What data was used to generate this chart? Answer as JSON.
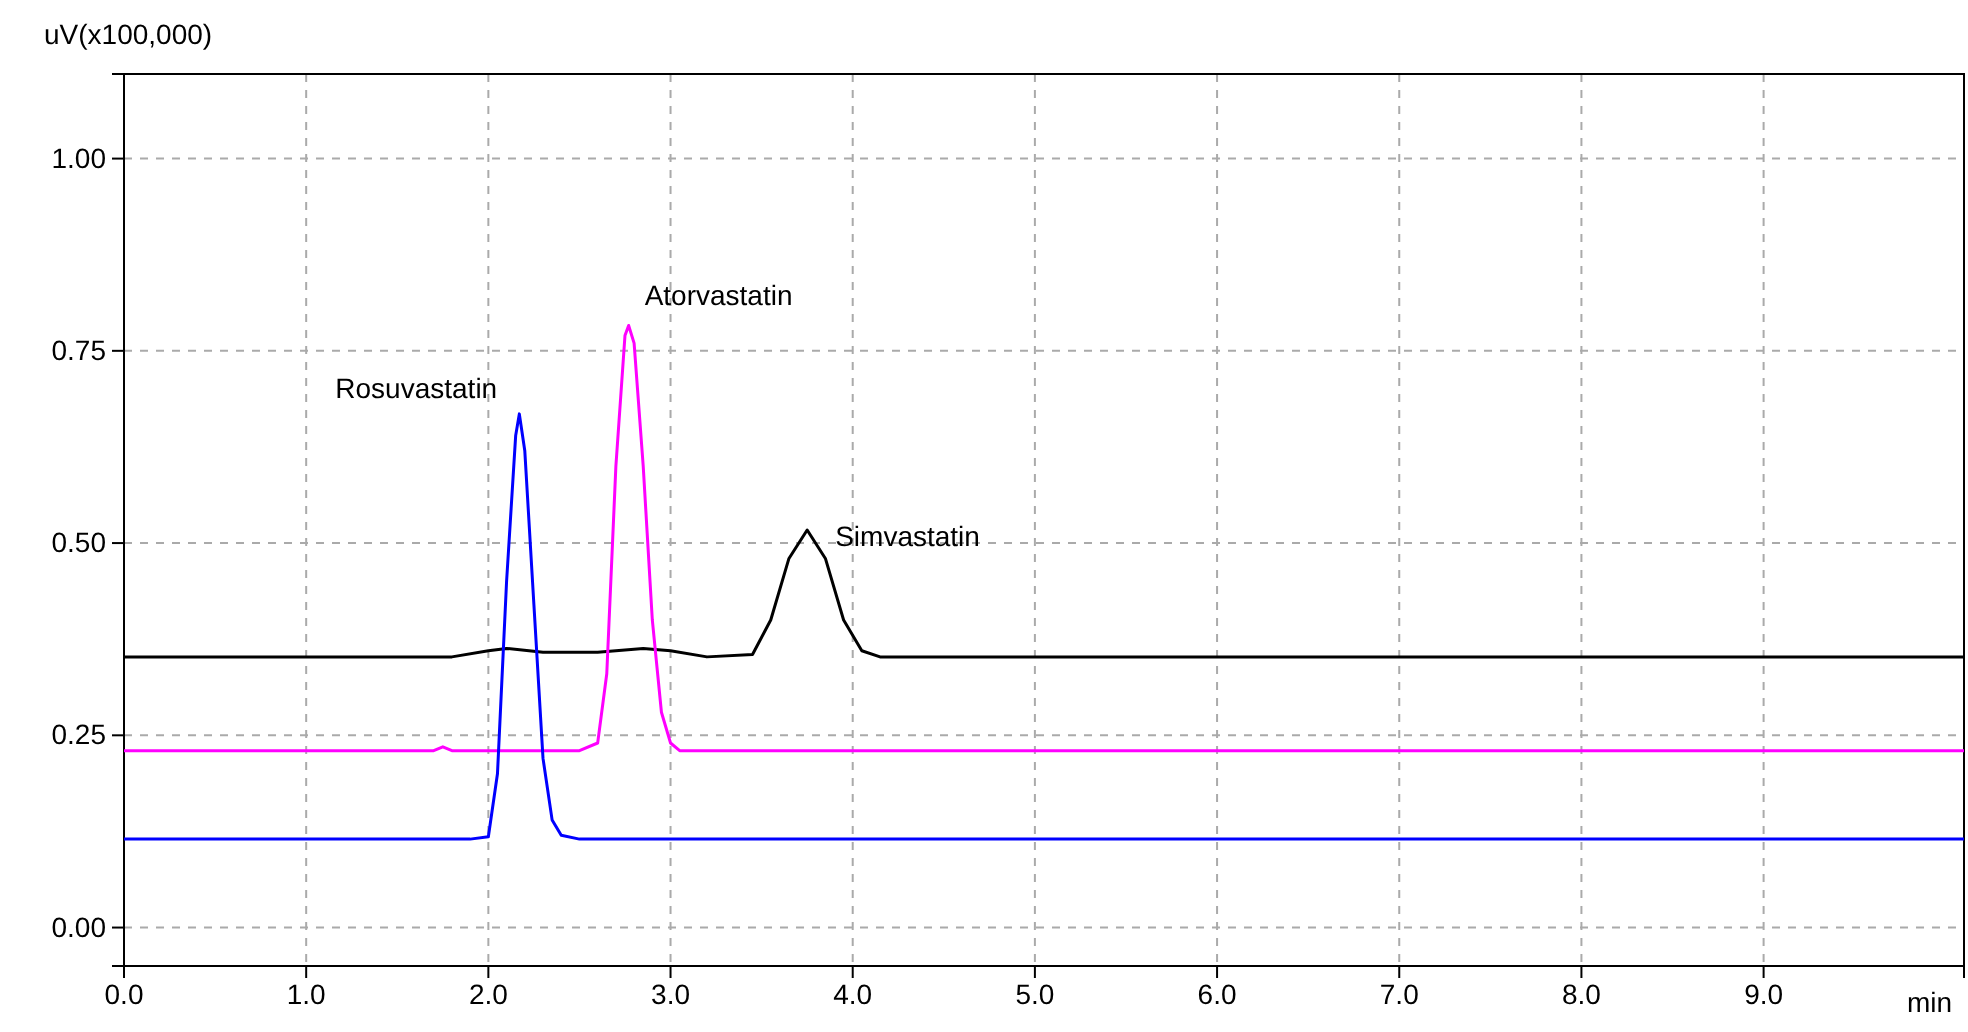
{
  "chart_data": {
    "type": "line",
    "ylabel": "uV(x100,000)",
    "xlabel": "min",
    "xlim": [
      0,
      10.1
    ],
    "ylim": [
      -0.05,
      1.11
    ],
    "xticks": [
      {
        "value": 0,
        "label": "0.0"
      },
      {
        "value": 1,
        "label": "1.0"
      },
      {
        "value": 2,
        "label": "2.0"
      },
      {
        "value": 3,
        "label": "3.0"
      },
      {
        "value": 4,
        "label": "4.0"
      },
      {
        "value": 5,
        "label": "5.0"
      },
      {
        "value": 6,
        "label": "6.0"
      },
      {
        "value": 7,
        "label": "7.0"
      },
      {
        "value": 8,
        "label": "8.0"
      },
      {
        "value": 9,
        "label": "9.0"
      }
    ],
    "yticks": [
      {
        "value": 0,
        "label": "0.00"
      },
      {
        "value": 0.25,
        "label": "0.25"
      },
      {
        "value": 0.5,
        "label": "0.50"
      },
      {
        "value": 0.75,
        "label": "0.75"
      },
      {
        "value": 1,
        "label": "1.00"
      }
    ],
    "grid": true,
    "legend": false,
    "line_style": "solid",
    "marker": "none",
    "series": [
      {
        "name": "Simvastatin",
        "color": "#000000",
        "x": [
          0,
          1.8,
          2.0,
          2.1,
          2.3,
          2.6,
          2.85,
          3.0,
          3.2,
          3.45,
          3.55,
          3.65,
          3.75,
          3.85,
          3.95,
          4.05,
          4.15,
          10.1
        ],
        "values": [
          0.352,
          0.352,
          0.36,
          0.363,
          0.358,
          0.358,
          0.363,
          0.36,
          0.352,
          0.355,
          0.4,
          0.48,
          0.517,
          0.48,
          0.4,
          0.36,
          0.352,
          0.352
        ]
      },
      {
        "name": "Atorvastatin",
        "color": "#ff00ff",
        "x": [
          0,
          1.7,
          1.75,
          1.8,
          2.5,
          2.6,
          2.65,
          2.7,
          2.75,
          2.77,
          2.8,
          2.85,
          2.9,
          2.95,
          3.0,
          3.05,
          10.1
        ],
        "values": [
          0.23,
          0.23,
          0.235,
          0.23,
          0.23,
          0.24,
          0.33,
          0.6,
          0.77,
          0.783,
          0.76,
          0.6,
          0.4,
          0.28,
          0.24,
          0.23,
          0.23
        ]
      },
      {
        "name": "Rosuvastatin",
        "color": "#0000ff",
        "x": [
          0,
          1.9,
          2.0,
          2.05,
          2.1,
          2.15,
          2.17,
          2.2,
          2.25,
          2.3,
          2.35,
          2.4,
          2.5,
          10.1
        ],
        "values": [
          0.115,
          0.115,
          0.118,
          0.2,
          0.45,
          0.64,
          0.668,
          0.62,
          0.42,
          0.22,
          0.14,
          0.12,
          0.115,
          0.115
        ]
      }
    ]
  }
}
